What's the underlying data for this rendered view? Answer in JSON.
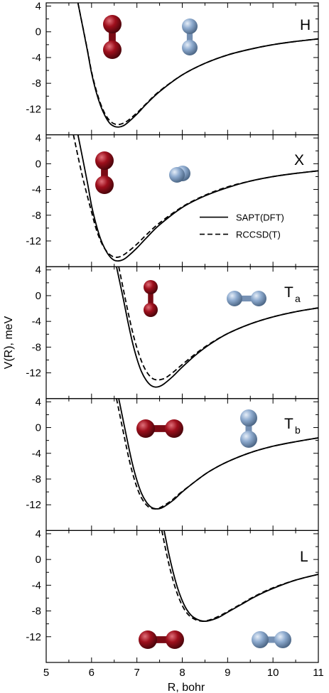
{
  "chart_data": {
    "type": "line",
    "xlabel": "R, bohr",
    "ylabel": "V(R), meV",
    "xlim": [
      5,
      11
    ],
    "ylim": [
      -16,
      4.5
    ],
    "x_ticks": [
      "5",
      "6",
      "7",
      "8",
      "9",
      "10",
      "11"
    ],
    "y_ticks": [
      "4",
      "0",
      "-4",
      "-8",
      "-12"
    ],
    "y_tick_values": [
      4,
      0,
      -4,
      -8,
      -12
    ],
    "legend": {
      "placement": "inside-panel-X-right",
      "entries": [
        {
          "label": "SAPT(DFT)",
          "style": "solid"
        },
        {
          "label": "RCCSD(T)",
          "style": "dashed"
        }
      ]
    },
    "colors": {
      "red_molecule": "#9e0f1c",
      "blue_molecule": "#8eabcf",
      "line": "#000000"
    },
    "panels": [
      {
        "label": "H",
        "subscript": "",
        "molecules": {
          "red": "vertical",
          "blue": "vertical"
        },
        "series": [
          {
            "name": "SAPT(DFT)",
            "style": "solid",
            "x": [
              5.7,
              5.9,
              6.0,
              6.1,
              6.2,
              6.3,
              6.4,
              6.5,
              6.6,
              6.7,
              6.8,
              7.0,
              7.2,
              7.5,
              8.0,
              8.5,
              9.0,
              9.5,
              10.0,
              10.5,
              11.0
            ],
            "y": [
              4.5,
              -2.6,
              -6.4,
              -9.3,
              -11.5,
              -13.1,
              -14.2,
              -14.7,
              -14.8,
              -14.6,
              -14.1,
              -12.8,
              -11.3,
              -9.3,
              -6.7,
              -4.9,
              -3.6,
              -2.7,
              -2.0,
              -1.5,
              -1.1
            ]
          },
          {
            "name": "RCCSD(T)",
            "style": "dashed",
            "x": [
              5.7,
              5.9,
              6.0,
              6.1,
              6.2,
              6.3,
              6.4,
              6.5,
              6.6,
              6.7,
              6.8,
              7.0,
              7.2,
              7.5,
              8.0,
              8.5,
              9.0,
              9.5,
              10.0,
              10.5,
              11.0
            ],
            "y": [
              4.5,
              -2.5,
              -6.2,
              -9.0,
              -11.2,
              -12.8,
              -13.8,
              -14.3,
              -14.4,
              -14.2,
              -13.8,
              -12.6,
              -11.2,
              -9.2,
              -6.7,
              -4.9,
              -3.6,
              -2.7,
              -2.0,
              -1.5,
              -1.1
            ]
          }
        ]
      },
      {
        "label": "X",
        "subscript": "",
        "molecules": {
          "red": "vertical",
          "blue": "end-on"
        },
        "series": [
          {
            "name": "SAPT(DFT)",
            "style": "solid",
            "x": [
              5.7,
              5.9,
              6.0,
              6.1,
              6.2,
              6.3,
              6.4,
              6.5,
              6.6,
              6.7,
              6.8,
              7.0,
              7.2,
              7.5,
              8.0,
              8.5,
              9.0,
              9.5,
              10.0,
              10.5,
              11.0
            ],
            "y": [
              4.5,
              -2.6,
              -6.5,
              -9.4,
              -11.7,
              -13.3,
              -14.4,
              -15.0,
              -15.1,
              -14.9,
              -14.4,
              -13.1,
              -11.6,
              -9.5,
              -6.8,
              -5.0,
              -3.7,
              -2.7,
              -2.0,
              -1.5,
              -1.1
            ]
          },
          {
            "name": "RCCSD(T)",
            "style": "dashed",
            "x": [
              5.6,
              5.8,
              6.0,
              6.1,
              6.2,
              6.3,
              6.4,
              6.5,
              6.6,
              6.7,
              6.8,
              7.0,
              7.2,
              7.5,
              8.0,
              8.5,
              9.0,
              9.5,
              10.0,
              10.5,
              11.0
            ],
            "y": [
              4.5,
              -2.0,
              -7.5,
              -10.1,
              -12.0,
              -13.3,
              -14.1,
              -14.5,
              -14.5,
              -14.2,
              -13.7,
              -12.5,
              -11.1,
              -9.2,
              -6.7,
              -4.9,
              -3.6,
              -2.7,
              -2.0,
              -1.5,
              -1.1
            ]
          }
        ]
      },
      {
        "label": "T",
        "subscript": "a",
        "molecules": {
          "red": "vertical",
          "blue": "horizontal"
        },
        "series": [
          {
            "name": "SAPT(DFT)",
            "style": "solid",
            "x": [
              6.55,
              6.7,
              6.8,
              6.9,
              7.0,
              7.1,
              7.2,
              7.3,
              7.4,
              7.5,
              7.6,
              7.8,
              8.0,
              8.3,
              8.6,
              9.0,
              9.5,
              10.0,
              10.5,
              11.0
            ],
            "y": [
              4.5,
              -0.5,
              -4.0,
              -7.2,
              -9.8,
              -11.8,
              -13.1,
              -13.9,
              -14.2,
              -14.1,
              -13.7,
              -12.5,
              -11.1,
              -9.2,
              -7.6,
              -5.9,
              -4.4,
              -3.3,
              -2.5,
              -1.9
            ]
          },
          {
            "name": "RCCSD(T)",
            "style": "dashed",
            "x": [
              6.6,
              6.75,
              6.85,
              6.95,
              7.05,
              7.15,
              7.25,
              7.35,
              7.45,
              7.55,
              7.65,
              7.8,
              8.0,
              8.3,
              8.6,
              9.0,
              9.5,
              10.0,
              10.5,
              11.0
            ],
            "y": [
              4.5,
              -0.7,
              -4.0,
              -6.9,
              -9.2,
              -11.0,
              -12.2,
              -12.9,
              -13.1,
              -13.0,
              -12.7,
              -11.9,
              -10.7,
              -9.0,
              -7.5,
              -5.9,
              -4.4,
              -3.3,
              -2.5,
              -1.9
            ]
          }
        ]
      },
      {
        "label": "T",
        "subscript": "b",
        "molecules": {
          "red": "horizontal",
          "blue": "vertical"
        },
        "series": [
          {
            "name": "SAPT(DFT)",
            "style": "solid",
            "x": [
              6.6,
              6.8,
              6.9,
              7.0,
              7.1,
              7.2,
              7.3,
              7.4,
              7.5,
              7.6,
              7.8,
              8.0,
              8.3,
              8.6,
              9.0,
              9.5,
              10.0,
              10.5,
              11.0
            ],
            "y": [
              4.5,
              -2.4,
              -5.6,
              -8.2,
              -10.2,
              -11.5,
              -12.3,
              -12.6,
              -12.6,
              -12.3,
              -11.3,
              -10.0,
              -8.3,
              -6.8,
              -5.3,
              -3.9,
              -2.9,
              -2.2,
              -1.6
            ]
          },
          {
            "name": "RCCSD(T)",
            "style": "dashed",
            "x": [
              6.55,
              6.75,
              6.85,
              6.95,
              7.05,
              7.15,
              7.25,
              7.35,
              7.45,
              7.55,
              7.75,
              7.95,
              8.3,
              8.6,
              9.0,
              9.5,
              10.0,
              10.5,
              11.0
            ],
            "y": [
              4.5,
              -2.4,
              -5.6,
              -8.2,
              -10.2,
              -11.5,
              -12.3,
              -12.6,
              -12.6,
              -12.3,
              -11.4,
              -10.2,
              -8.3,
              -6.8,
              -5.3,
              -3.9,
              -2.9,
              -2.2,
              -1.6
            ]
          }
        ]
      },
      {
        "label": "L",
        "subscript": "",
        "molecules": {
          "red": "horizontal",
          "blue": "horizontal"
        },
        "series": [
          {
            "name": "SAPT(DFT)",
            "style": "solid",
            "x": [
              7.6,
              7.7,
              7.8,
              7.9,
              8.0,
              8.1,
              8.2,
              8.3,
              8.4,
              8.5,
              8.6,
              8.8,
              9.0,
              9.3,
              9.6,
              10.0,
              10.5,
              11.0
            ],
            "y": [
              4.5,
              1.0,
              -2.0,
              -4.5,
              -6.4,
              -7.8,
              -8.7,
              -9.2,
              -9.5,
              -9.6,
              -9.5,
              -9.0,
              -8.2,
              -7.0,
              -5.8,
              -4.5,
              -3.2,
              -2.3
            ]
          },
          {
            "name": "RCCSD(T)",
            "style": "dashed",
            "x": [
              7.55,
              7.65,
              7.75,
              7.85,
              7.95,
              8.05,
              8.15,
              8.25,
              8.35,
              8.45,
              8.55,
              8.75,
              9.0,
              9.3,
              9.6,
              10.0,
              10.5,
              11.0
            ],
            "y": [
              4.5,
              1.0,
              -2.0,
              -4.5,
              -6.4,
              -7.8,
              -8.7,
              -9.2,
              -9.5,
              -9.6,
              -9.5,
              -9.0,
              -8.1,
              -6.9,
              -5.7,
              -4.4,
              -3.2,
              -2.3
            ]
          }
        ]
      }
    ]
  }
}
